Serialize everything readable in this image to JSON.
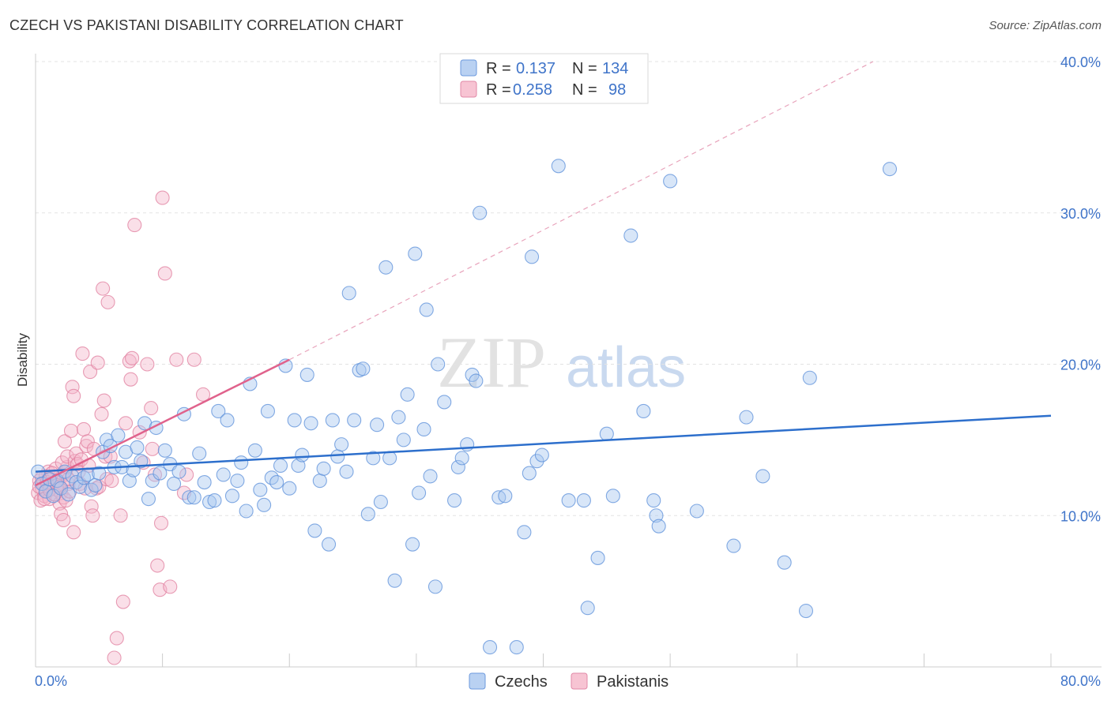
{
  "header": {
    "title": "CZECH VS PAKISTANI DISABILITY CORRELATION CHART",
    "source": "Source: ZipAtlas.com"
  },
  "watermark": {
    "zip": "ZIP",
    "atlas": "atlas"
  },
  "legend": {
    "rows": [
      {
        "r_label": "R =",
        "r_value": "0.137",
        "n_label": "N =",
        "n_value": "134"
      },
      {
        "r_label": "R =",
        "r_value": "0.258",
        "n_label": "N =",
        "n_value": "98"
      }
    ]
  },
  "chart_data": {
    "type": "scatter",
    "title": "CZECH VS PAKISTANI DISABILITY CORRELATION CHART",
    "xlabel": "",
    "ylabel": "Disability",
    "xlim": [
      0,
      80
    ],
    "ylim": [
      0,
      40
    ],
    "x_tick_labels": [
      "0.0%",
      "80.0%"
    ],
    "y_ticks": [
      10,
      20,
      30,
      40
    ],
    "y_tick_labels": [
      "10.0%",
      "20.0%",
      "30.0%",
      "40.0%"
    ],
    "grid": true,
    "legend_position": "top-center",
    "series": [
      {
        "name": "Czechs",
        "color": "#5b8fd9",
        "fill": "#a9c7f0",
        "r": 0.137,
        "n": 134,
        "trendline": {
          "x": [
            0,
            80
          ],
          "y": [
            12.9,
            16.6
          ]
        },
        "points": [
          [
            0.2,
            12.9
          ],
          [
            0.5,
            12.1
          ],
          [
            0.8,
            11.6
          ],
          [
            1.1,
            12.4
          ],
          [
            1.4,
            11.3
          ],
          [
            1.7,
            12.3
          ],
          [
            2.0,
            11.8
          ],
          [
            2.3,
            12.9
          ],
          [
            2.6,
            11.4
          ],
          [
            2.9,
            12.6
          ],
          [
            3.2,
            12.2
          ],
          [
            3.5,
            11.9
          ],
          [
            3.8,
            12.5
          ],
          [
            4.1,
            12.7
          ],
          [
            4.4,
            11.7
          ],
          [
            4.7,
            12.0
          ],
          [
            5.0,
            12.8
          ],
          [
            5.3,
            14.2
          ],
          [
            5.6,
            15.0
          ],
          [
            5.9,
            14.6
          ],
          [
            6.2,
            13.2
          ],
          [
            6.5,
            15.3
          ],
          [
            6.8,
            13.2
          ],
          [
            7.1,
            14.2
          ],
          [
            7.4,
            12.3
          ],
          [
            7.7,
            13.0
          ],
          [
            8.0,
            14.5
          ],
          [
            8.3,
            13.6
          ],
          [
            8.6,
            16.1
          ],
          [
            8.9,
            11.1
          ],
          [
            9.2,
            12.3
          ],
          [
            9.5,
            15.8
          ],
          [
            9.8,
            12.8
          ],
          [
            10.2,
            14.3
          ],
          [
            10.6,
            13.4
          ],
          [
            10.9,
            12.1
          ],
          [
            11.3,
            12.9
          ],
          [
            11.7,
            16.7
          ],
          [
            12.1,
            11.2
          ],
          [
            12.5,
            11.2
          ],
          [
            12.9,
            14.1
          ],
          [
            13.3,
            12.2
          ],
          [
            13.7,
            10.9
          ],
          [
            14.1,
            11.0
          ],
          [
            14.4,
            16.9
          ],
          [
            14.8,
            12.7
          ],
          [
            15.1,
            16.3
          ],
          [
            15.5,
            11.3
          ],
          [
            15.9,
            12.3
          ],
          [
            16.2,
            13.5
          ],
          [
            16.6,
            10.3
          ],
          [
            16.9,
            18.7
          ],
          [
            17.3,
            14.3
          ],
          [
            17.7,
            11.7
          ],
          [
            18.0,
            10.7
          ],
          [
            18.3,
            16.9
          ],
          [
            18.6,
            12.5
          ],
          [
            19.0,
            12.2
          ],
          [
            19.3,
            13.3
          ],
          [
            19.7,
            19.9
          ],
          [
            20.0,
            11.8
          ],
          [
            20.4,
            16.3
          ],
          [
            20.7,
            13.3
          ],
          [
            21.0,
            14.0
          ],
          [
            21.4,
            19.3
          ],
          [
            21.7,
            16.1
          ],
          [
            22.0,
            9.0
          ],
          [
            22.4,
            12.3
          ],
          [
            22.7,
            13.1
          ],
          [
            23.1,
            8.1
          ],
          [
            23.4,
            16.3
          ],
          [
            23.8,
            13.9
          ],
          [
            24.1,
            14.7
          ],
          [
            24.5,
            12.9
          ],
          [
            24.7,
            24.7
          ],
          [
            25.1,
            16.3
          ],
          [
            25.5,
            19.6
          ],
          [
            25.8,
            19.7
          ],
          [
            26.2,
            10.1
          ],
          [
            26.6,
            13.8
          ],
          [
            26.9,
            16.0
          ],
          [
            27.2,
            10.9
          ],
          [
            27.6,
            26.4
          ],
          [
            27.9,
            13.8
          ],
          [
            28.3,
            5.7
          ],
          [
            28.6,
            16.5
          ],
          [
            29.0,
            15.0
          ],
          [
            29.3,
            18.0
          ],
          [
            29.7,
            8.1
          ],
          [
            29.9,
            27.3
          ],
          [
            30.2,
            11.5
          ],
          [
            30.6,
            15.7
          ],
          [
            30.8,
            23.6
          ],
          [
            31.1,
            12.6
          ],
          [
            31.5,
            5.3
          ],
          [
            31.7,
            20.0
          ],
          [
            32.2,
            17.5
          ],
          [
            33.0,
            11.0
          ],
          [
            33.3,
            13.2
          ],
          [
            33.6,
            13.8
          ],
          [
            34.0,
            14.7
          ],
          [
            34.4,
            19.3
          ],
          [
            34.7,
            18.9
          ],
          [
            35.0,
            30.0
          ],
          [
            35.8,
            1.3
          ],
          [
            36.5,
            11.2
          ],
          [
            37.0,
            11.3
          ],
          [
            37.9,
            1.3
          ],
          [
            38.5,
            8.9
          ],
          [
            38.9,
            12.8
          ],
          [
            39.1,
            27.1
          ],
          [
            39.5,
            13.6
          ],
          [
            39.9,
            14.0
          ],
          [
            41.2,
            33.1
          ],
          [
            42.0,
            11.0
          ],
          [
            43.2,
            11.0
          ],
          [
            43.5,
            3.9
          ],
          [
            44.3,
            7.2
          ],
          [
            45.0,
            15.4
          ],
          [
            45.5,
            11.3
          ],
          [
            46.9,
            28.5
          ],
          [
            47.9,
            16.9
          ],
          [
            48.7,
            11.0
          ],
          [
            48.9,
            10.0
          ],
          [
            49.1,
            9.3
          ],
          [
            50.0,
            32.1
          ],
          [
            52.1,
            10.3
          ],
          [
            55.0,
            8.0
          ],
          [
            56.0,
            16.5
          ],
          [
            57.3,
            12.6
          ],
          [
            59.0,
            6.9
          ],
          [
            60.7,
            3.7
          ],
          [
            61.0,
            19.1
          ],
          [
            67.3,
            32.9
          ]
        ]
      },
      {
        "name": "Pakistanis",
        "color": "#e07d9e",
        "fill": "#f5b9cc",
        "r": 0.258,
        "n": 98,
        "trendline": {
          "x": [
            0,
            20
          ],
          "y": [
            12.0,
            20.3
          ],
          "dashed_extension": {
            "x": [
              20,
              80
            ],
            "y": [
              20.3,
              46.0
            ]
          }
        },
        "points": [
          [
            0.2,
            11.5
          ],
          [
            0.3,
            12.3
          ],
          [
            0.4,
            11.0
          ],
          [
            0.5,
            11.8
          ],
          [
            0.6,
            12.1
          ],
          [
            0.7,
            11.3
          ],
          [
            0.8,
            12.6
          ],
          [
            0.9,
            11.6
          ],
          [
            1.0,
            12.9
          ],
          [
            1.1,
            11.1
          ],
          [
            1.2,
            12.4
          ],
          [
            1.3,
            11.9
          ],
          [
            1.4,
            12.0
          ],
          [
            1.5,
            11.4
          ],
          [
            1.6,
            13.1
          ],
          [
            1.7,
            11.7
          ],
          [
            1.8,
            12.3
          ],
          [
            1.9,
            10.8
          ],
          [
            2.0,
            11.5
          ],
          [
            2.1,
            12.6
          ],
          [
            2.2,
            11.2
          ],
          [
            2.3,
            12.8
          ],
          [
            2.4,
            11.0
          ],
          [
            2.5,
            13.2
          ],
          [
            2.6,
            12.1
          ],
          [
            2.7,
            11.6
          ],
          [
            0.3,
            11.9
          ],
          [
            0.5,
            12.5
          ],
          [
            0.7,
            11.1
          ],
          [
            0.9,
            12.2
          ],
          [
            1.1,
            11.7
          ],
          [
            1.3,
            12.8
          ],
          [
            1.5,
            11.4
          ],
          [
            1.7,
            12.0
          ],
          [
            1.9,
            11.9
          ],
          [
            2.1,
            13.5
          ],
          [
            2.3,
            14.9
          ],
          [
            2.0,
            10.1
          ],
          [
            2.2,
            9.7
          ],
          [
            2.5,
            13.9
          ],
          [
            2.6,
            12.4
          ],
          [
            2.8,
            15.6
          ],
          [
            2.9,
            18.5
          ],
          [
            3.0,
            17.9
          ],
          [
            3.0,
            8.9
          ],
          [
            3.1,
            13.6
          ],
          [
            3.2,
            14.1
          ],
          [
            3.3,
            13.4
          ],
          [
            3.4,
            12.9
          ],
          [
            3.5,
            12.1
          ],
          [
            3.6,
            13.7
          ],
          [
            3.7,
            20.7
          ],
          [
            3.8,
            15.7
          ],
          [
            3.9,
            11.8
          ],
          [
            4.0,
            14.6
          ],
          [
            4.1,
            14.9
          ],
          [
            4.2,
            13.3
          ],
          [
            4.3,
            19.5
          ],
          [
            4.4,
            10.6
          ],
          [
            4.6,
            14.4
          ],
          [
            4.8,
            11.8
          ],
          [
            4.9,
            20.1
          ],
          [
            5.0,
            11.9
          ],
          [
            4.5,
            10.0
          ],
          [
            5.2,
            16.7
          ],
          [
            5.3,
            25.0
          ],
          [
            5.4,
            17.6
          ],
          [
            5.5,
            13.9
          ],
          [
            5.6,
            12.4
          ],
          [
            5.7,
            24.1
          ],
          [
            5.9,
            13.9
          ],
          [
            6.0,
            12.3
          ],
          [
            6.2,
            0.6
          ],
          [
            6.4,
            1.9
          ],
          [
            6.7,
            10.0
          ],
          [
            6.9,
            4.3
          ],
          [
            7.1,
            16.1
          ],
          [
            7.4,
            20.2
          ],
          [
            7.5,
            19.0
          ],
          [
            7.6,
            20.4
          ],
          [
            7.8,
            29.2
          ],
          [
            8.2,
            15.5
          ],
          [
            8.5,
            13.5
          ],
          [
            8.8,
            20.0
          ],
          [
            9.1,
            17.1
          ],
          [
            9.2,
            14.4
          ],
          [
            9.4,
            12.7
          ],
          [
            9.6,
            6.7
          ],
          [
            9.8,
            5.1
          ],
          [
            9.9,
            9.5
          ],
          [
            10.0,
            31.0
          ],
          [
            10.2,
            26.0
          ],
          [
            10.6,
            5.3
          ],
          [
            11.1,
            20.3
          ],
          [
            11.7,
            11.5
          ],
          [
            11.9,
            12.7
          ],
          [
            12.5,
            20.3
          ],
          [
            13.2,
            18.0
          ]
        ]
      }
    ]
  }
}
